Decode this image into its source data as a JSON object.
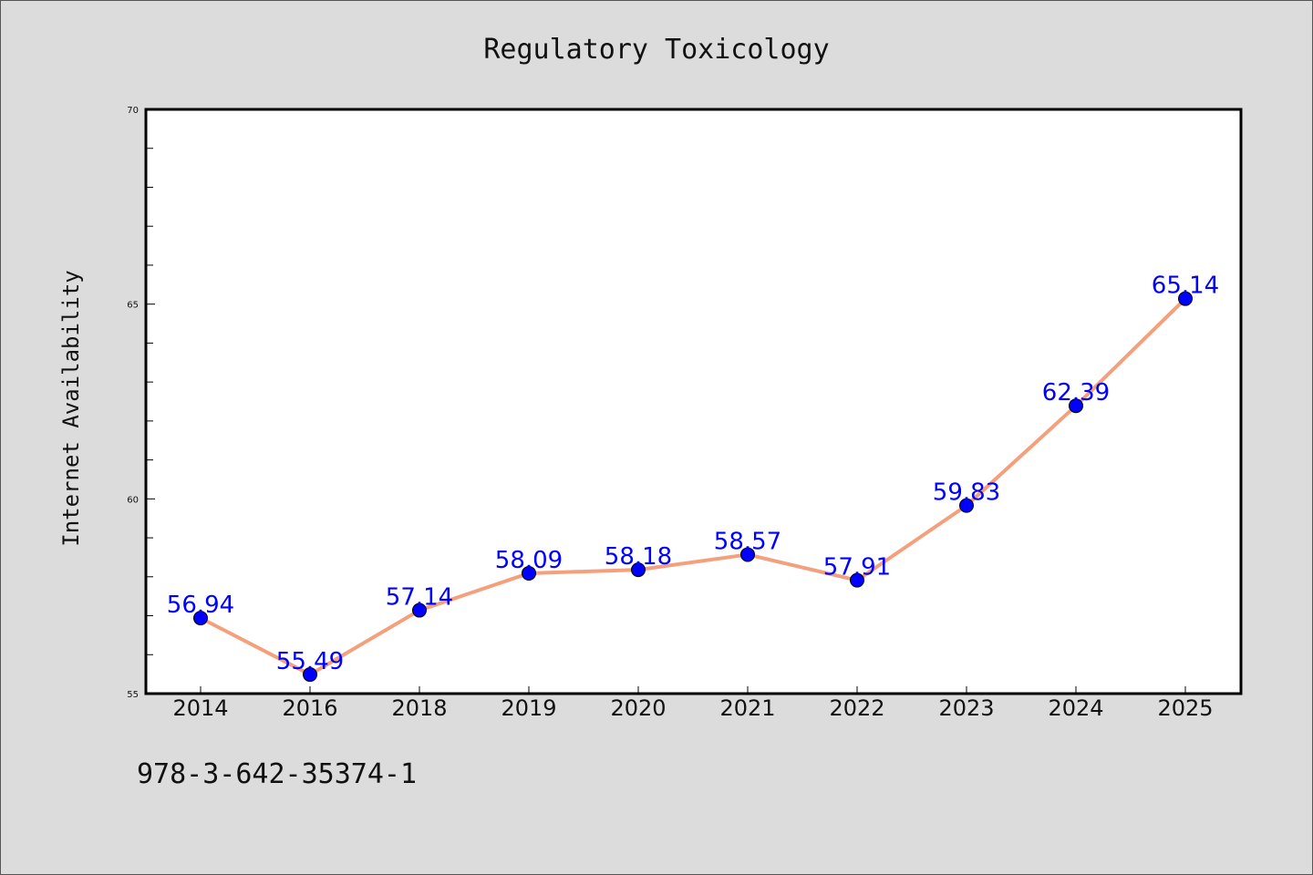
{
  "chart_data": {
    "type": "line",
    "title": "Regulatory Toxicology",
    "xlabel": "",
    "ylabel": "Internet Availability",
    "categories": [
      "2014",
      "2016",
      "2018",
      "2019",
      "2020",
      "2021",
      "2022",
      "2023",
      "2024",
      "2025"
    ],
    "series": [
      {
        "values": [
          56.94,
          55.49,
          57.14,
          58.09,
          58.18,
          58.57,
          57.91,
          59.83,
          62.39,
          65.14
        ]
      }
    ],
    "data_labels": [
      "56.94",
      "55.49",
      "57.14",
      "58.09",
      "58.18",
      "58.57",
      "57.91",
      "59.83",
      "62.39",
      "65.14"
    ],
    "ylim": [
      55,
      70
    ],
    "yticks": [
      55,
      60,
      65,
      70
    ],
    "ytick_labels": [
      "55",
      "60",
      "65",
      "70"
    ],
    "grid": false,
    "legend": "none",
    "colors": {
      "line": "#f4a07c",
      "marker": "#0000ff",
      "data_label": "#0000ff",
      "background": "#dcdcdc",
      "plot_area": "#ffffff"
    }
  },
  "footer": {
    "identifier": "978-3-642-35374-1"
  }
}
